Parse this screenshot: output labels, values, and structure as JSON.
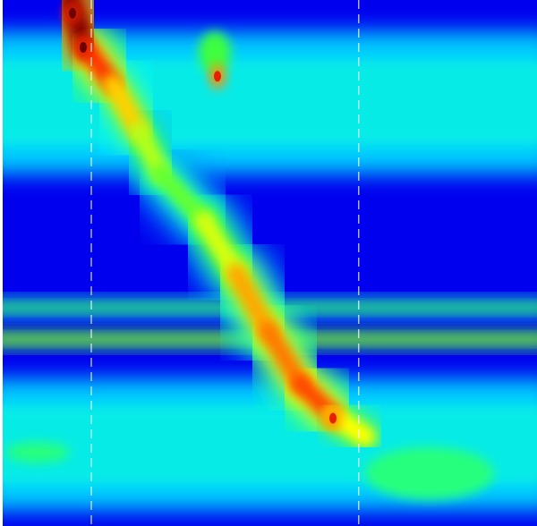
{
  "chart_data": {
    "type": "heatmap",
    "title": "",
    "xlabel": "",
    "ylabel": "",
    "colormap": "jet",
    "colors": {
      "background": "#0000ee",
      "low": "#0000ff",
      "mid_low": "#00ffff",
      "mid": "#00ff00",
      "mid_high": "#ffff00",
      "high": "#ff0000",
      "peak": "#600000",
      "marker_line": "#ffffff",
      "left_border": "#ffffff"
    },
    "vertical_markers": [
      {
        "name": "marker-a",
        "x_fraction": 0.17
      },
      {
        "name": "marker-b",
        "x_fraction": 0.668
      }
    ],
    "horizontal_bands": [
      {
        "name": "upper-band",
        "y_from": 0.06,
        "y_to": 0.33,
        "intensity": 0.35
      },
      {
        "name": "dotted-band-a",
        "y_from": 0.57,
        "y_to": 0.6,
        "intensity": 0.45
      },
      {
        "name": "dotted-band-b",
        "y_from": 0.63,
        "y_to": 0.66,
        "intensity": 0.55
      },
      {
        "name": "lower-band",
        "y_from": 0.72,
        "y_to": 0.97,
        "intensity": 0.35
      }
    ],
    "ridge": {
      "name": "main-ridge",
      "points": [
        {
          "t": 0.0,
          "x": 0.13,
          "y": 0.0,
          "intensity": 1.0
        },
        {
          "t": 0.06,
          "x": 0.16,
          "y": 0.09,
          "intensity": 0.95
        },
        {
          "t": 0.16,
          "x": 0.21,
          "y": 0.16,
          "intensity": 0.75
        },
        {
          "t": 0.26,
          "x": 0.26,
          "y": 0.25,
          "intensity": 0.72
        },
        {
          "t": 0.35,
          "x": 0.3,
          "y": 0.33,
          "intensity": 0.55
        },
        {
          "t": 0.46,
          "x": 0.38,
          "y": 0.42,
          "intensity": 0.58
        },
        {
          "t": 0.55,
          "x": 0.44,
          "y": 0.52,
          "intensity": 0.75
        },
        {
          "t": 0.66,
          "x": 0.5,
          "y": 0.63,
          "intensity": 0.78
        },
        {
          "t": 0.78,
          "x": 0.56,
          "y": 0.73,
          "intensity": 0.82
        },
        {
          "t": 0.9,
          "x": 0.62,
          "y": 0.79,
          "intensity": 0.85
        },
        {
          "t": 1.0,
          "x": 0.68,
          "y": 0.83,
          "intensity": 0.55
        }
      ]
    },
    "hot_spots": [
      {
        "name": "hotspot-top",
        "x": 0.135,
        "y": 0.025,
        "intensity": 1.0
      },
      {
        "name": "hotspot-upper",
        "x": 0.155,
        "y": 0.09,
        "intensity": 1.0
      },
      {
        "name": "hotspot-small",
        "x": 0.405,
        "y": 0.145,
        "intensity": 0.9
      },
      {
        "name": "hotspot-lower",
        "x": 0.62,
        "y": 0.795,
        "intensity": 0.9
      }
    ],
    "blobs": [
      {
        "name": "blob-green-top",
        "x": 0.4,
        "y": 0.1,
        "rx": 0.03,
        "ry": 0.04,
        "intensity": 0.55
      },
      {
        "name": "blob-lower-right",
        "x": 0.8,
        "y": 0.9,
        "rx": 0.12,
        "ry": 0.05,
        "intensity": 0.5
      },
      {
        "name": "blob-lower-left",
        "x": 0.07,
        "y": 0.86,
        "rx": 0.06,
        "ry": 0.02,
        "intensity": 0.5
      }
    ]
  }
}
